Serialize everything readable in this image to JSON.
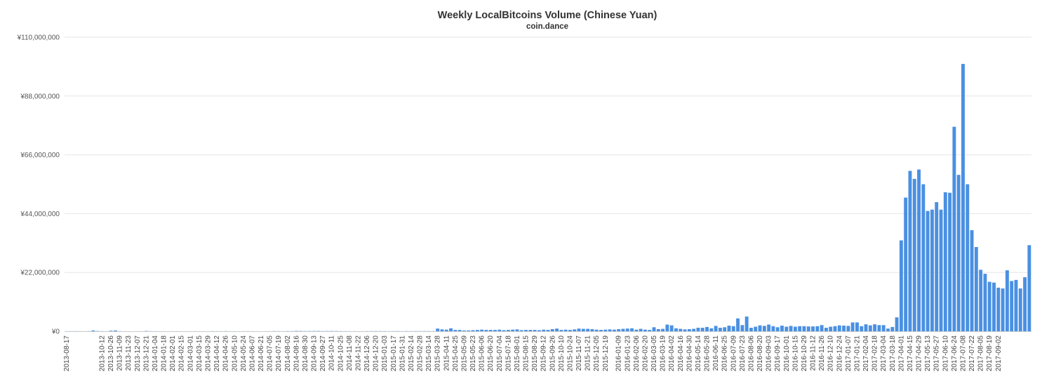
{
  "chart_data": {
    "type": "bar",
    "title": "Weekly LocalBitcoins Volume (Chinese Yuan)",
    "subtitle": "coin.dance",
    "color": "#4a90e2",
    "ylim": [
      0,
      110000000
    ],
    "y_ticks": [
      "¥0",
      "¥22,000,000",
      "¥44,000,000",
      "¥66,000,000",
      "¥88,000,000",
      "¥110,000,000"
    ],
    "y_tick_values": [
      0,
      22000000,
      44000000,
      66000000,
      88000000,
      110000000
    ],
    "grid": true,
    "legend": "none",
    "start_week": "2013-08-17",
    "x_tick_labels": [
      "2013-08-17",
      "2013-10-12",
      "2013-10-26",
      "2013-11-09",
      "2013-11-23",
      "2013-12-07",
      "2013-12-21",
      "2014-01-04",
      "2014-01-18",
      "2014-02-01",
      "2014-02-15",
      "2014-03-01",
      "2014-03-15",
      "2014-03-29",
      "2014-04-12",
      "2014-04-26",
      "2014-05-10",
      "2014-05-24",
      "2014-06-07",
      "2014-06-21",
      "2014-07-05",
      "2014-07-19",
      "2014-08-02",
      "2014-08-16",
      "2014-08-30",
      "2014-09-13",
      "2014-09-27",
      "2014-10-11",
      "2014-10-25",
      "2014-11-08",
      "2014-11-22",
      "2014-12-06",
      "2014-12-20",
      "2015-01-03",
      "2015-01-17",
      "2015-01-31",
      "2015-02-14",
      "2015-02-28",
      "2015-03-14",
      "2015-03-28",
      "2015-04-11",
      "2015-04-25",
      "2015-05-09",
      "2015-05-23",
      "2015-06-06",
      "2015-06-20",
      "2015-07-04",
      "2015-07-18",
      "2015-08-01",
      "2015-08-15",
      "2015-08-29",
      "2015-09-12",
      "2015-09-26",
      "2015-10-10",
      "2015-10-24",
      "2015-11-07",
      "2015-11-21",
      "2015-12-05",
      "2015-12-19",
      "2016-01-09",
      "2016-01-23",
      "2016-02-06",
      "2016-02-20",
      "2016-03-05",
      "2016-03-19",
      "2016-04-02",
      "2016-04-16",
      "2016-04-30",
      "2016-05-14",
      "2016-05-28",
      "2016-06-11",
      "2016-06-25",
      "2016-07-09",
      "2016-07-23",
      "2016-08-06",
      "2016-08-20",
      "2016-09-03",
      "2016-09-17",
      "2016-10-01",
      "2016-10-15",
      "2016-10-29",
      "2016-11-12",
      "2016-11-26",
      "2016-12-10",
      "2016-12-24",
      "2017-01-07",
      "2017-01-21",
      "2017-02-04",
      "2017-02-18",
      "2017-03-04",
      "2017-03-18",
      "2017-04-01",
      "2017-04-15",
      "2017-04-29",
      "2017-05-13",
      "2017-05-27",
      "2017-06-10",
      "2017-06-24",
      "2017-07-08",
      "2017-07-22",
      "2017-08-05",
      "2017-08-19",
      "2017-09-02"
    ],
    "values": [
      20000,
      30000,
      40000,
      30000,
      20000,
      50000,
      300000,
      80000,
      40000,
      20000,
      200000,
      300000,
      40000,
      30000,
      10000,
      5000,
      10000,
      20000,
      100000,
      40000,
      20000,
      15000,
      10000,
      10000,
      10000,
      15000,
      10000,
      10000,
      10000,
      20000,
      10000,
      10000,
      10000,
      40000,
      30000,
      25000,
      50000,
      20000,
      10000,
      10000,
      20000,
      30000,
      10000,
      10000,
      5000,
      10000,
      15000,
      60000,
      40000,
      20000,
      60000,
      50000,
      120000,
      100000,
      60000,
      70000,
      90000,
      100000,
      60000,
      70000,
      80000,
      70000,
      50000,
      40000,
      30000,
      20000,
      10000,
      30000,
      40000,
      50000,
      60000,
      60000,
      50000,
      30000,
      40000,
      60000,
      30000,
      60000,
      40000,
      50000,
      50000,
      60000,
      60000,
      40000,
      1000000,
      700000,
      600000,
      1100000,
      500000,
      500000,
      300000,
      300000,
      400000,
      500000,
      600000,
      500000,
      500000,
      500000,
      600000,
      400000,
      500000,
      600000,
      700000,
      400000,
      500000,
      500000,
      500000,
      400000,
      600000,
      500000,
      800000,
      1000000,
      500000,
      600000,
      500000,
      700000,
      1000000,
      900000,
      900000,
      800000,
      600000,
      500000,
      600000,
      700000,
      600000,
      800000,
      900000,
      1000000,
      1100000,
      600000,
      900000,
      600000,
      500000,
      1500000,
      800000,
      900000,
      2500000,
      2200000,
      1100000,
      900000,
      700000,
      800000,
      900000,
      1300000,
      1300000,
      1600000,
      1100000,
      2000000,
      1300000,
      1500000,
      2100000,
      1900000,
      4800000,
      2300000,
      5500000,
      1300000,
      1700000,
      2200000,
      2000000,
      2500000,
      1900000,
      1500000,
      2100000,
      1700000,
      2000000,
      1700000,
      1900000,
      1900000,
      1800000,
      1800000,
      1900000,
      2300000,
      1300000,
      1700000,
      1900000,
      2200000,
      2100000,
      2000000,
      3300000,
      3300000,
      1900000,
      2600000,
      2200000,
      2600000,
      2300000,
      2300000,
      1000000,
      1600000,
      5200000,
      34000000,
      50000000,
      60000000,
      57000000,
      60500000,
      55000000,
      45000000,
      45500000,
      48300000,
      45500000,
      52000000,
      51800000,
      76500000,
      58500000,
      100000000,
      55000000,
      37800000,
      31500000,
      23000000,
      21500000,
      18500000,
      18200000,
      16300000,
      16000000,
      22800000,
      18800000,
      19200000,
      16000000,
      20200000,
      32200000
    ]
  }
}
